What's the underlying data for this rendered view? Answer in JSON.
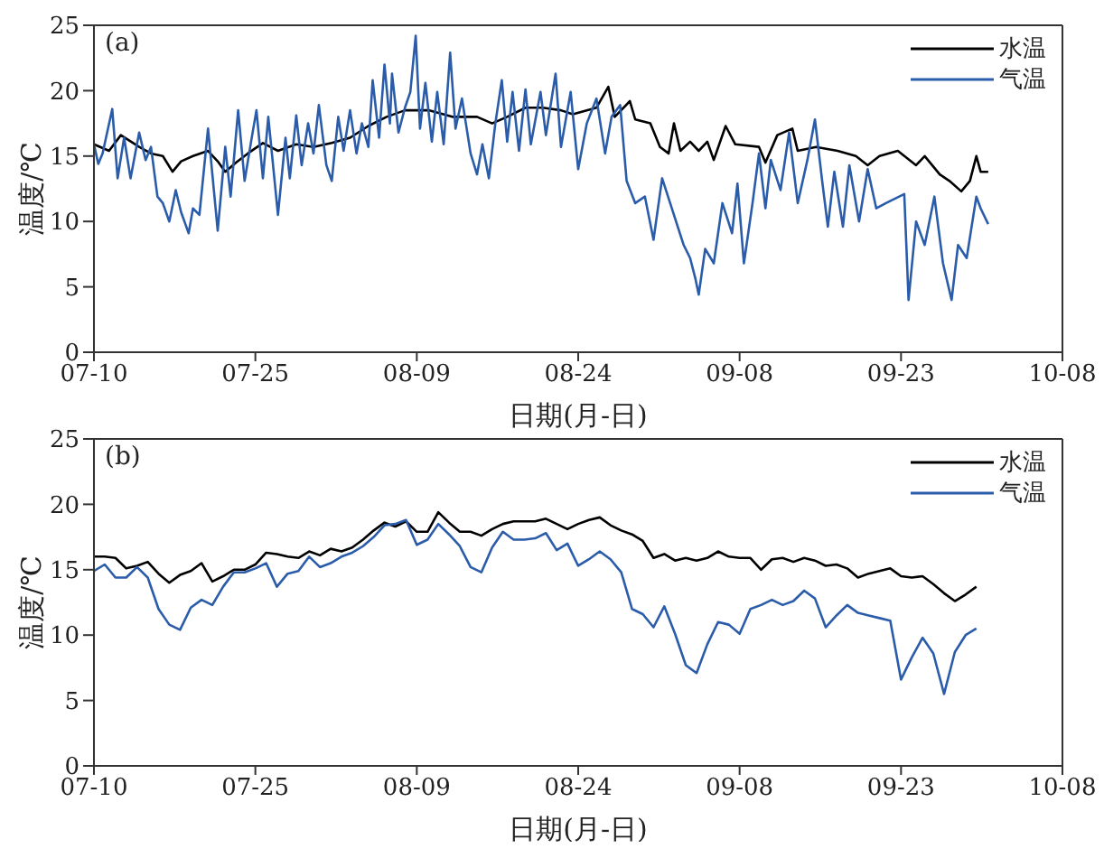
{
  "chart_data": [
    {
      "type": "line",
      "annotations": [
        "(a)"
      ],
      "xlabel": "日期(月-日)",
      "ylabel": "温度/℃",
      "xlim": [
        "--07-10",
        "--10-08"
      ],
      "xticks": [
        {
          "value": "--07-10",
          "label": "07-10"
        },
        {
          "value": "--07-25",
          "label": "07-25"
        },
        {
          "value": "--08-09",
          "label": "08-09"
        },
        {
          "value": "--08-24",
          "label": "08-24"
        },
        {
          "value": "--09-08",
          "label": "09-08"
        },
        {
          "value": "--09-23",
          "label": "09-23"
        },
        {
          "value": "--10-08",
          "label": "10-08"
        }
      ],
      "ylim": [
        0,
        25
      ],
      "yticks": [
        0,
        5,
        10,
        15,
        20,
        25
      ],
      "legend": "top right",
      "series": [
        {
          "name": "水温",
          "color": "#000000",
          "x": [
            "--07-10T00:00",
            "--07-11T09:36",
            "--07-12T12:00",
            "--07-14T04:48",
            "--07-15T07:12",
            "--07-16T09:36",
            "--07-17T07:12",
            "--07-18T02:24",
            "--07-19T04:48",
            "--07-20T14:24",
            "--07-21T12:00",
            "--07-22T04:48",
            "--07-23T04:48",
            "--07-24T07:12",
            "--07-25T16:48",
            "--07-27T02:24",
            "--07-28T19:12",
            "--07-30T09:36",
            "--08-01T02:24",
            "--08-02T19:12",
            "--08-04T12:00",
            "--08-06T04:48",
            "--08-07T21:36",
            "--08-09T00:00",
            "--08-10T02:24",
            "--08-12T07:12",
            "--08-14T14:24",
            "--08-16T00:00",
            "--08-17T09:36",
            "--08-19T02:24",
            "--08-20T16:48",
            "--08-22T09:36",
            "--08-23T12:00",
            "--08-25T16:48",
            "--08-26T19:12",
            "--08-27T09:36",
            "--08-28T19:12",
            "--08-29T07:12",
            "--08-30T16:48",
            "--08-31T14:24",
            "--09-01T09:36",
            "--09-01T21:36",
            "--09-02T12:00",
            "--09-03T09:36",
            "--09-04T04:48",
            "--09-05T00:00",
            "--09-05T14:24",
            "--09-06T16:48",
            "--09-07T14:24",
            "--09-09T19:12",
            "--09-10T09:36",
            "--09-11T12:00",
            "--09-12T21:36",
            "--09-13T09:36",
            "--09-15T02:24",
            "--09-17T02:24",
            "--09-18T19:12",
            "--09-19T21:36",
            "--09-21T00:00",
            "--09-22T16:48",
            "--09-24T09:36",
            "--09-25T04:48",
            "--09-26T14:24",
            "--09-27T12:00",
            "--09-28T14:24",
            "--09-29T09:36",
            "--09-30T00:00",
            "--09-30T09:36",
            "--10-01T02:24"
          ],
          "values": [
            15.9,
            15.4,
            16.6,
            15.7,
            15.2,
            15.0,
            13.8,
            14.6,
            15.0,
            15.4,
            14.6,
            13.8,
            14.5,
            15.2,
            16.0,
            15.4,
            15.9,
            15.7,
            16.0,
            16.4,
            17.3,
            18.0,
            18.5,
            18.5,
            18.5,
            18.0,
            18.0,
            17.5,
            18.0,
            18.7,
            18.7,
            18.5,
            18.2,
            18.7,
            20.3,
            18.0,
            19.2,
            17.8,
            17.5,
            15.7,
            15.2,
            17.5,
            15.4,
            16.1,
            15.4,
            16.1,
            14.7,
            17.3,
            15.9,
            15.7,
            14.5,
            16.6,
            17.1,
            15.4,
            15.7,
            15.4,
            15.0,
            14.3,
            15.0,
            15.4,
            14.3,
            15.0,
            13.6,
            13.1,
            12.3,
            13.1,
            15.0,
            13.8,
            13.8
          ]
        },
        {
          "name": "气温",
          "color": "#2a5caa",
          "x": [
            "--07-10T00:00",
            "--07-10T09:36",
            "--07-10T19:12",
            "--07-11T16:48",
            "--07-12T04:48",
            "--07-12T19:12",
            "--07-13T09:36",
            "--07-14T04:48",
            "--07-14T19:12",
            "--07-15T07:12",
            "--07-15T21:36",
            "--07-16T09:36",
            "--07-17T00:00",
            "--07-17T14:24",
            "--07-18T02:24",
            "--07-18T19:12",
            "--07-19T04:48",
            "--07-19T19:12",
            "--07-20T14:24",
            "--07-21T12:00",
            "--07-22T04:48",
            "--07-22T16:48",
            "--07-23T09:36",
            "--07-24T00:00",
            "--07-24T14:24",
            "--07-25T02:24",
            "--07-25T16:48",
            "--07-26T04:48",
            "--07-27T02:24",
            "--07-27T19:12",
            "--07-28T04:48",
            "--07-28T19:12",
            "--07-29T07:12",
            "--07-29T21:36",
            "--07-30T09:36",
            "--07-30T21:36",
            "--07-31T14:24",
            "--08-01T02:24",
            "--08-01T16:48",
            "--08-02T04:48",
            "--08-02T19:12",
            "--08-03T09:36",
            "--08-03T21:36",
            "--08-04T12:00",
            "--08-04T21:36",
            "--08-05T12:00",
            "--08-06T00:00",
            "--08-06T12:00",
            "--08-06T16:48",
            "--08-07T07:12",
            "--08-07T21:36",
            "--08-08T09:36",
            "--08-08T21:36",
            "--08-09T07:12",
            "--08-09T19:12",
            "--08-10T09:36",
            "--08-10T21:36",
            "--08-11T12:00",
            "--08-12T02:24",
            "--08-12T14:24",
            "--08-13T04:48",
            "--08-14T00:00",
            "--08-14T14:24",
            "--08-15T02:24",
            "--08-15T16:48",
            "--08-16T07:12",
            "--08-16T21:36",
            "--08-17T09:36",
            "--08-17T21:36",
            "--08-18T12:00",
            "--08-19T02:24",
            "--08-19T14:24",
            "--08-20T12:00",
            "--08-21T00:00",
            "--08-21T21:36",
            "--08-22T09:36",
            "--08-23T07:12",
            "--08-24T00:00",
            "--08-24T19:12",
            "--08-25T16:48",
            "--08-26T12:00",
            "--08-27T02:24",
            "--08-27T21:36",
            "--08-28T12:00",
            "--08-29T07:12",
            "--08-30T04:48",
            "--08-31T00:00",
            "--08-31T19:12",
            "--09-01T16:48",
            "--09-02T19:12",
            "--09-03T09:36",
            "--09-03T21:36",
            "--09-04T04:48",
            "--09-04T19:12",
            "--09-05T14:24",
            "--09-06T09:36",
            "--09-07T07:12",
            "--09-07T19:12",
            "--09-08T09:36",
            "--09-09T04:48",
            "--09-09T19:12",
            "--09-10T09:36",
            "--09-10T21:36",
            "--09-11T19:12",
            "--09-12T14:24",
            "--09-13T09:36",
            "--09-14T07:12",
            "--09-15T00:00",
            "--09-15T16:48",
            "--09-16T04:48",
            "--09-16T19:12",
            "--09-17T14:24",
            "--09-18T04:48",
            "--09-19T02:24",
            "--09-19T21:36",
            "--09-20T16:48",
            "--09-21T14:24",
            "--09-23T07:12",
            "--09-23T16:48",
            "--09-24T09:36",
            "--09-25T04:48",
            "--09-26T02:24",
            "--09-26T21:36",
            "--09-27T16:48",
            "--09-28T07:12",
            "--09-29T02:24",
            "--09-30T00:00",
            "--09-30T09:36",
            "--10-01T02:24"
          ],
          "values": [
            15.9,
            14.4,
            15.2,
            18.6,
            13.3,
            16.4,
            13.3,
            16.8,
            14.7,
            15.7,
            11.9,
            11.4,
            10.0,
            12.4,
            10.7,
            9.1,
            11.0,
            10.5,
            17.1,
            9.3,
            15.7,
            11.9,
            18.5,
            13.1,
            16.1,
            18.5,
            13.3,
            18.0,
            10.5,
            16.4,
            13.3,
            18.1,
            14.3,
            17.5,
            15.2,
            18.9,
            14.3,
            13.1,
            18.0,
            15.4,
            18.5,
            15.2,
            17.5,
            15.7,
            20.8,
            16.4,
            22.0,
            17.5,
            21.3,
            16.8,
            18.7,
            19.9,
            24.2,
            17.1,
            20.6,
            16.1,
            19.9,
            15.9,
            22.9,
            17.1,
            19.4,
            15.2,
            13.6,
            15.9,
            13.3,
            17.5,
            20.8,
            16.1,
            19.9,
            15.4,
            20.1,
            15.9,
            19.9,
            16.6,
            21.3,
            15.7,
            19.9,
            14.0,
            17.5,
            19.4,
            15.2,
            18.0,
            18.9,
            13.1,
            11.4,
            11.9,
            8.6,
            13.3,
            11.0,
            8.2,
            7.2,
            5.6,
            4.4,
            7.9,
            6.8,
            11.4,
            9.1,
            12.9,
            6.8,
            11.4,
            15.2,
            11.0,
            14.7,
            12.4,
            16.8,
            11.4,
            14.7,
            17.8,
            12.9,
            9.6,
            13.8,
            9.6,
            14.3,
            10.0,
            14.0,
            11.0,
            11.4,
            12.1,
            4.0,
            10.0,
            8.2,
            11.9,
            6.8,
            4.0,
            8.2,
            7.2,
            11.9,
            11.0,
            9.8
          ]
        }
      ]
    },
    {
      "type": "line",
      "annotations": [
        "(b)"
      ],
      "xlabel": "日期(月-日)",
      "ylabel": "温度/℃",
      "xlim": [
        "--07-10",
        "--10-08"
      ],
      "xticks": [
        {
          "value": "--07-10",
          "label": "07-10"
        },
        {
          "value": "--07-25",
          "label": "07-25"
        },
        {
          "value": "--08-09",
          "label": "08-09"
        },
        {
          "value": "--08-24",
          "label": "08-24"
        },
        {
          "value": "--09-08",
          "label": "09-08"
        },
        {
          "value": "--09-23",
          "label": "09-23"
        },
        {
          "value": "--10-08",
          "label": "10-08"
        }
      ],
      "ylim": [
        0,
        25
      ],
      "yticks": [
        0,
        5,
        10,
        15,
        20,
        25
      ],
      "legend": "top right",
      "x": [
        "--07-10",
        "--07-11",
        "--07-12",
        "--07-13",
        "--07-14",
        "--07-15",
        "--07-16",
        "--07-17",
        "--07-18",
        "--07-19",
        "--07-20",
        "--07-21",
        "--07-22",
        "--07-23",
        "--07-24",
        "--07-25",
        "--07-26",
        "--07-27",
        "--07-28",
        "--07-29",
        "--07-30",
        "--07-31",
        "--08-01",
        "--08-02",
        "--08-03",
        "--08-04",
        "--08-05",
        "--08-06",
        "--08-07",
        "--08-08",
        "--08-09",
        "--08-10",
        "--08-11",
        "--08-12",
        "--08-13",
        "--08-14",
        "--08-15",
        "--08-16",
        "--08-17",
        "--08-18",
        "--08-19",
        "--08-20",
        "--08-21",
        "--08-22",
        "--08-23",
        "--08-24",
        "--08-25",
        "--08-26",
        "--08-27",
        "--08-28",
        "--08-29",
        "--08-30",
        "--08-31",
        "--09-01",
        "--09-02",
        "--09-03",
        "--09-04",
        "--09-05",
        "--09-06",
        "--09-07",
        "--09-08",
        "--09-09",
        "--09-10",
        "--09-11",
        "--09-12",
        "--09-13",
        "--09-14",
        "--09-15",
        "--09-16",
        "--09-17",
        "--09-18",
        "--09-19",
        "--09-20",
        "--09-21",
        "--09-22",
        "--09-23",
        "--09-24",
        "--09-25",
        "--09-26",
        "--09-27",
        "--09-28",
        "--09-29",
        "--09-30"
      ],
      "series": [
        {
          "name": "水温",
          "color": "#000000",
          "values": [
            16.0,
            16.0,
            15.9,
            15.1,
            15.3,
            15.6,
            14.7,
            14.0,
            14.6,
            14.9,
            15.5,
            14.1,
            14.5,
            15.0,
            15.0,
            15.4,
            16.3,
            16.2,
            16.0,
            15.9,
            16.4,
            16.1,
            16.6,
            16.4,
            16.7,
            17.3,
            18.0,
            18.6,
            18.3,
            18.7,
            17.9,
            17.9,
            19.4,
            18.6,
            17.9,
            17.9,
            17.6,
            18.1,
            18.5,
            18.7,
            18.7,
            18.7,
            18.9,
            18.5,
            18.1,
            18.5,
            18.8,
            19.0,
            18.4,
            18.0,
            17.7,
            17.2,
            15.9,
            16.2,
            15.7,
            15.9,
            15.7,
            15.9,
            16.4,
            16.0,
            15.9,
            15.9,
            15.0,
            15.8,
            15.9,
            15.6,
            15.9,
            15.7,
            15.3,
            15.4,
            15.1,
            14.4,
            14.7,
            14.9,
            15.1,
            14.5,
            14.4,
            14.5,
            13.9,
            13.2,
            12.6,
            13.1,
            13.7
          ]
        },
        {
          "name": "气温",
          "color": "#2a5caa",
          "values": [
            14.9,
            15.4,
            14.4,
            14.4,
            15.2,
            14.4,
            12.0,
            10.8,
            10.4,
            12.1,
            12.7,
            12.3,
            13.7,
            14.8,
            14.8,
            15.1,
            15.5,
            13.7,
            14.7,
            14.9,
            16.0,
            15.2,
            15.5,
            16.0,
            16.3,
            16.8,
            17.5,
            18.4,
            18.5,
            18.8,
            16.9,
            17.3,
            18.5,
            17.7,
            16.8,
            15.2,
            14.8,
            16.7,
            17.9,
            17.3,
            17.3,
            17.4,
            17.8,
            16.5,
            17.0,
            15.3,
            15.8,
            16.4,
            15.8,
            14.8,
            12.0,
            11.6,
            10.6,
            12.2,
            10.1,
            7.7,
            7.1,
            9.3,
            11.0,
            10.8,
            10.1,
            12.0,
            12.3,
            12.7,
            12.3,
            12.6,
            13.4,
            12.8,
            10.6,
            11.5,
            12.3,
            11.7,
            11.5,
            11.3,
            11.1,
            6.6,
            8.3,
            9.8,
            8.6,
            5.5,
            8.7,
            10.0,
            10.5
          ]
        }
      ]
    }
  ]
}
